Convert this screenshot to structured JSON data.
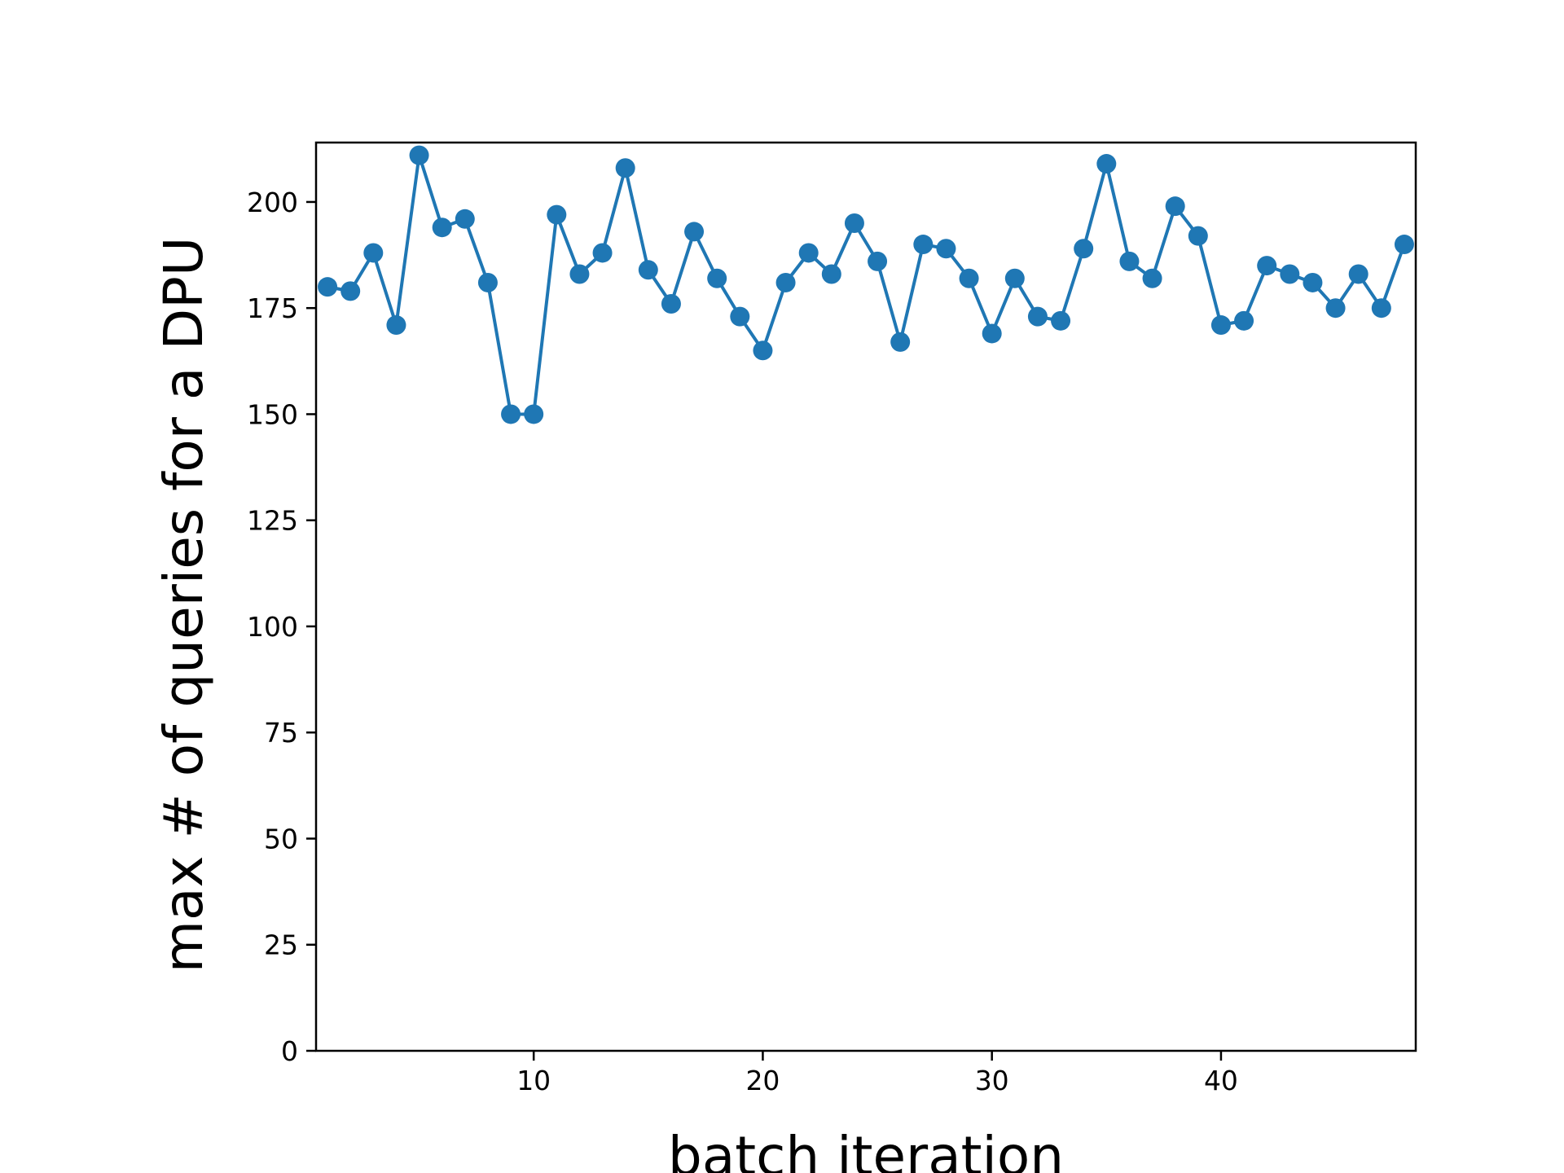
{
  "chart_data": {
    "type": "line",
    "title": "",
    "xlabel": "batch iteration",
    "ylabel": "max # of queries for a DPU",
    "xlim": [
      0.5,
      48.5
    ],
    "ylim": [
      0,
      214
    ],
    "xticks": [
      10,
      20,
      30,
      40
    ],
    "yticks": [
      0,
      25,
      50,
      75,
      100,
      125,
      150,
      175,
      200
    ],
    "grid": false,
    "legend": "none",
    "marker": "circle",
    "colors": {
      "line": "#1f77b4",
      "axes": "#000000",
      "background": "#ffffff"
    },
    "series": [
      {
        "x": [
          1,
          2,
          3,
          4,
          5,
          6,
          7,
          8,
          9,
          10,
          11,
          12,
          13,
          14,
          15,
          16,
          17,
          18,
          19,
          20,
          21,
          22,
          23,
          24,
          25,
          26,
          27,
          28,
          29,
          30,
          31,
          32,
          33,
          34,
          35,
          36,
          37,
          38,
          39,
          40,
          41,
          42,
          43,
          44,
          45,
          46,
          47,
          48
        ],
        "values": [
          180,
          179,
          188,
          171,
          211,
          194,
          196,
          181,
          150,
          150,
          197,
          183,
          188,
          208,
          184,
          176,
          193,
          182,
          173,
          165,
          181,
          188,
          183,
          195,
          186,
          167,
          190,
          189,
          182,
          169,
          182,
          173,
          172,
          189,
          209,
          186,
          182,
          199,
          192,
          171,
          172,
          185,
          183,
          181,
          175,
          183,
          175,
          190
        ]
      }
    ]
  }
}
